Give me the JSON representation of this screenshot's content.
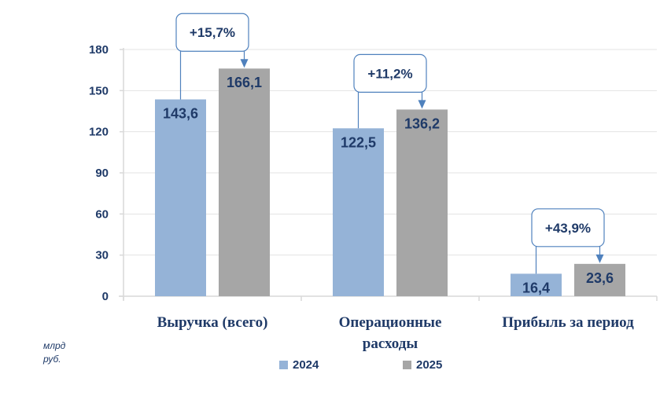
{
  "chart_data": {
    "type": "bar",
    "categories": [
      "Выручка (всего)",
      "Операционные расходы",
      "Прибыль за период"
    ],
    "category_lines": [
      [
        "Выручка (всего)"
      ],
      [
        "Операционные",
        "расходы"
      ],
      [
        "Прибыль за период"
      ]
    ],
    "series": [
      {
        "name": "2024",
        "values": [
          143.6,
          122.5,
          16.4
        ],
        "labels": [
          "143,6",
          "122,5",
          "16,4"
        ],
        "color": "#95b3d7"
      },
      {
        "name": "2025",
        "values": [
          166.1,
          136.2,
          23.6
        ],
        "labels": [
          "166,1",
          "136,2",
          "23,6"
        ],
        "color": "#a6a6a6"
      }
    ],
    "annotations": [
      "+15,7%",
      "+11,2%",
      "+43,9%"
    ],
    "yticks": [
      0,
      30,
      60,
      90,
      120,
      150,
      180
    ],
    "ylim": [
      0,
      180
    ],
    "grid": true,
    "unit_label": [
      "млрд",
      "руб."
    ],
    "legend_position": "bottom",
    "accent_color": "#4f81bd",
    "text_color": "#1f3a68"
  }
}
